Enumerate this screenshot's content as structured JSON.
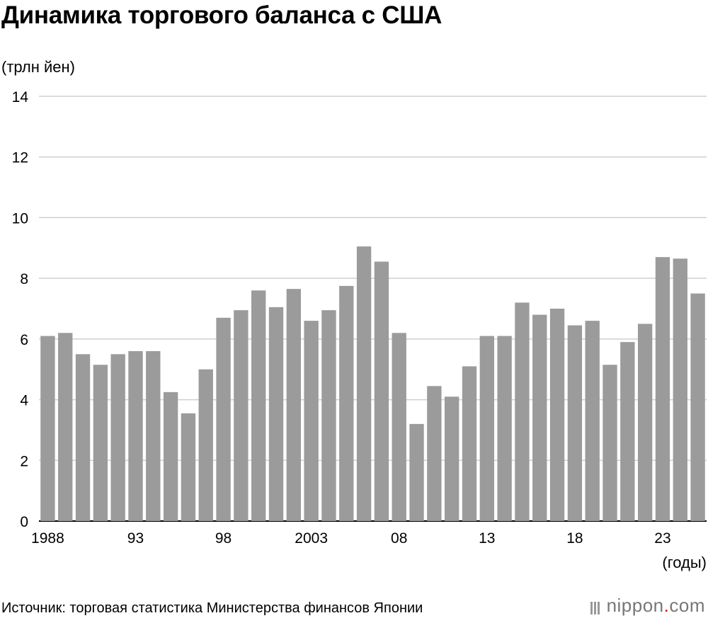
{
  "chart_data": {
    "type": "bar",
    "title": "Динамика торгового баланса с США",
    "ylabel": "(трлн йен)",
    "xlabel": "(годы)",
    "ylim": [
      0,
      14
    ],
    "yticks": [
      "0",
      "2",
      "4",
      "6",
      "8",
      "10",
      "12",
      "14"
    ],
    "x_tick_labels": [
      {
        "index": 0,
        "label": "1988"
      },
      {
        "index": 5,
        "label": "93"
      },
      {
        "index": 10,
        "label": "98"
      },
      {
        "index": 15,
        "label": "2003"
      },
      {
        "index": 20,
        "label": "08"
      },
      {
        "index": 25,
        "label": "13"
      },
      {
        "index": 30,
        "label": "18"
      },
      {
        "index": 35,
        "label": "23"
      }
    ],
    "categories": [
      "1988",
      "1989",
      "1990",
      "1991",
      "1992",
      "1993",
      "1994",
      "1995",
      "1996",
      "1997",
      "1998",
      "1999",
      "2000",
      "2001",
      "2002",
      "2003",
      "2004",
      "2005",
      "2006",
      "2007",
      "2008",
      "2009",
      "2010",
      "2011",
      "2012",
      "2013",
      "2014",
      "2015",
      "2016",
      "2017",
      "2018",
      "2019",
      "2020",
      "2021",
      "2022",
      "2023",
      "2024",
      "2025"
    ],
    "values": [
      6.1,
      6.2,
      5.5,
      5.15,
      5.5,
      5.6,
      5.6,
      4.25,
      3.55,
      5.0,
      6.7,
      6.95,
      7.6,
      7.05,
      7.65,
      6.6,
      6.95,
      7.75,
      9.05,
      8.55,
      6.2,
      3.2,
      4.45,
      4.1,
      5.1,
      6.1,
      6.1,
      7.2,
      6.8,
      7.0,
      6.45,
      6.6,
      5.15,
      5.9,
      6.5,
      8.7,
      8.65,
      7.5
    ],
    "grid": true,
    "colors": {
      "bar": "#9b9b9b",
      "grid": "#cfcfcf",
      "axis": "#000000"
    }
  },
  "source_text": "Источник: торговая статистика Министерства финансов Японии",
  "brand": {
    "name": "nippon",
    "dot": ".",
    "tld": "com"
  }
}
